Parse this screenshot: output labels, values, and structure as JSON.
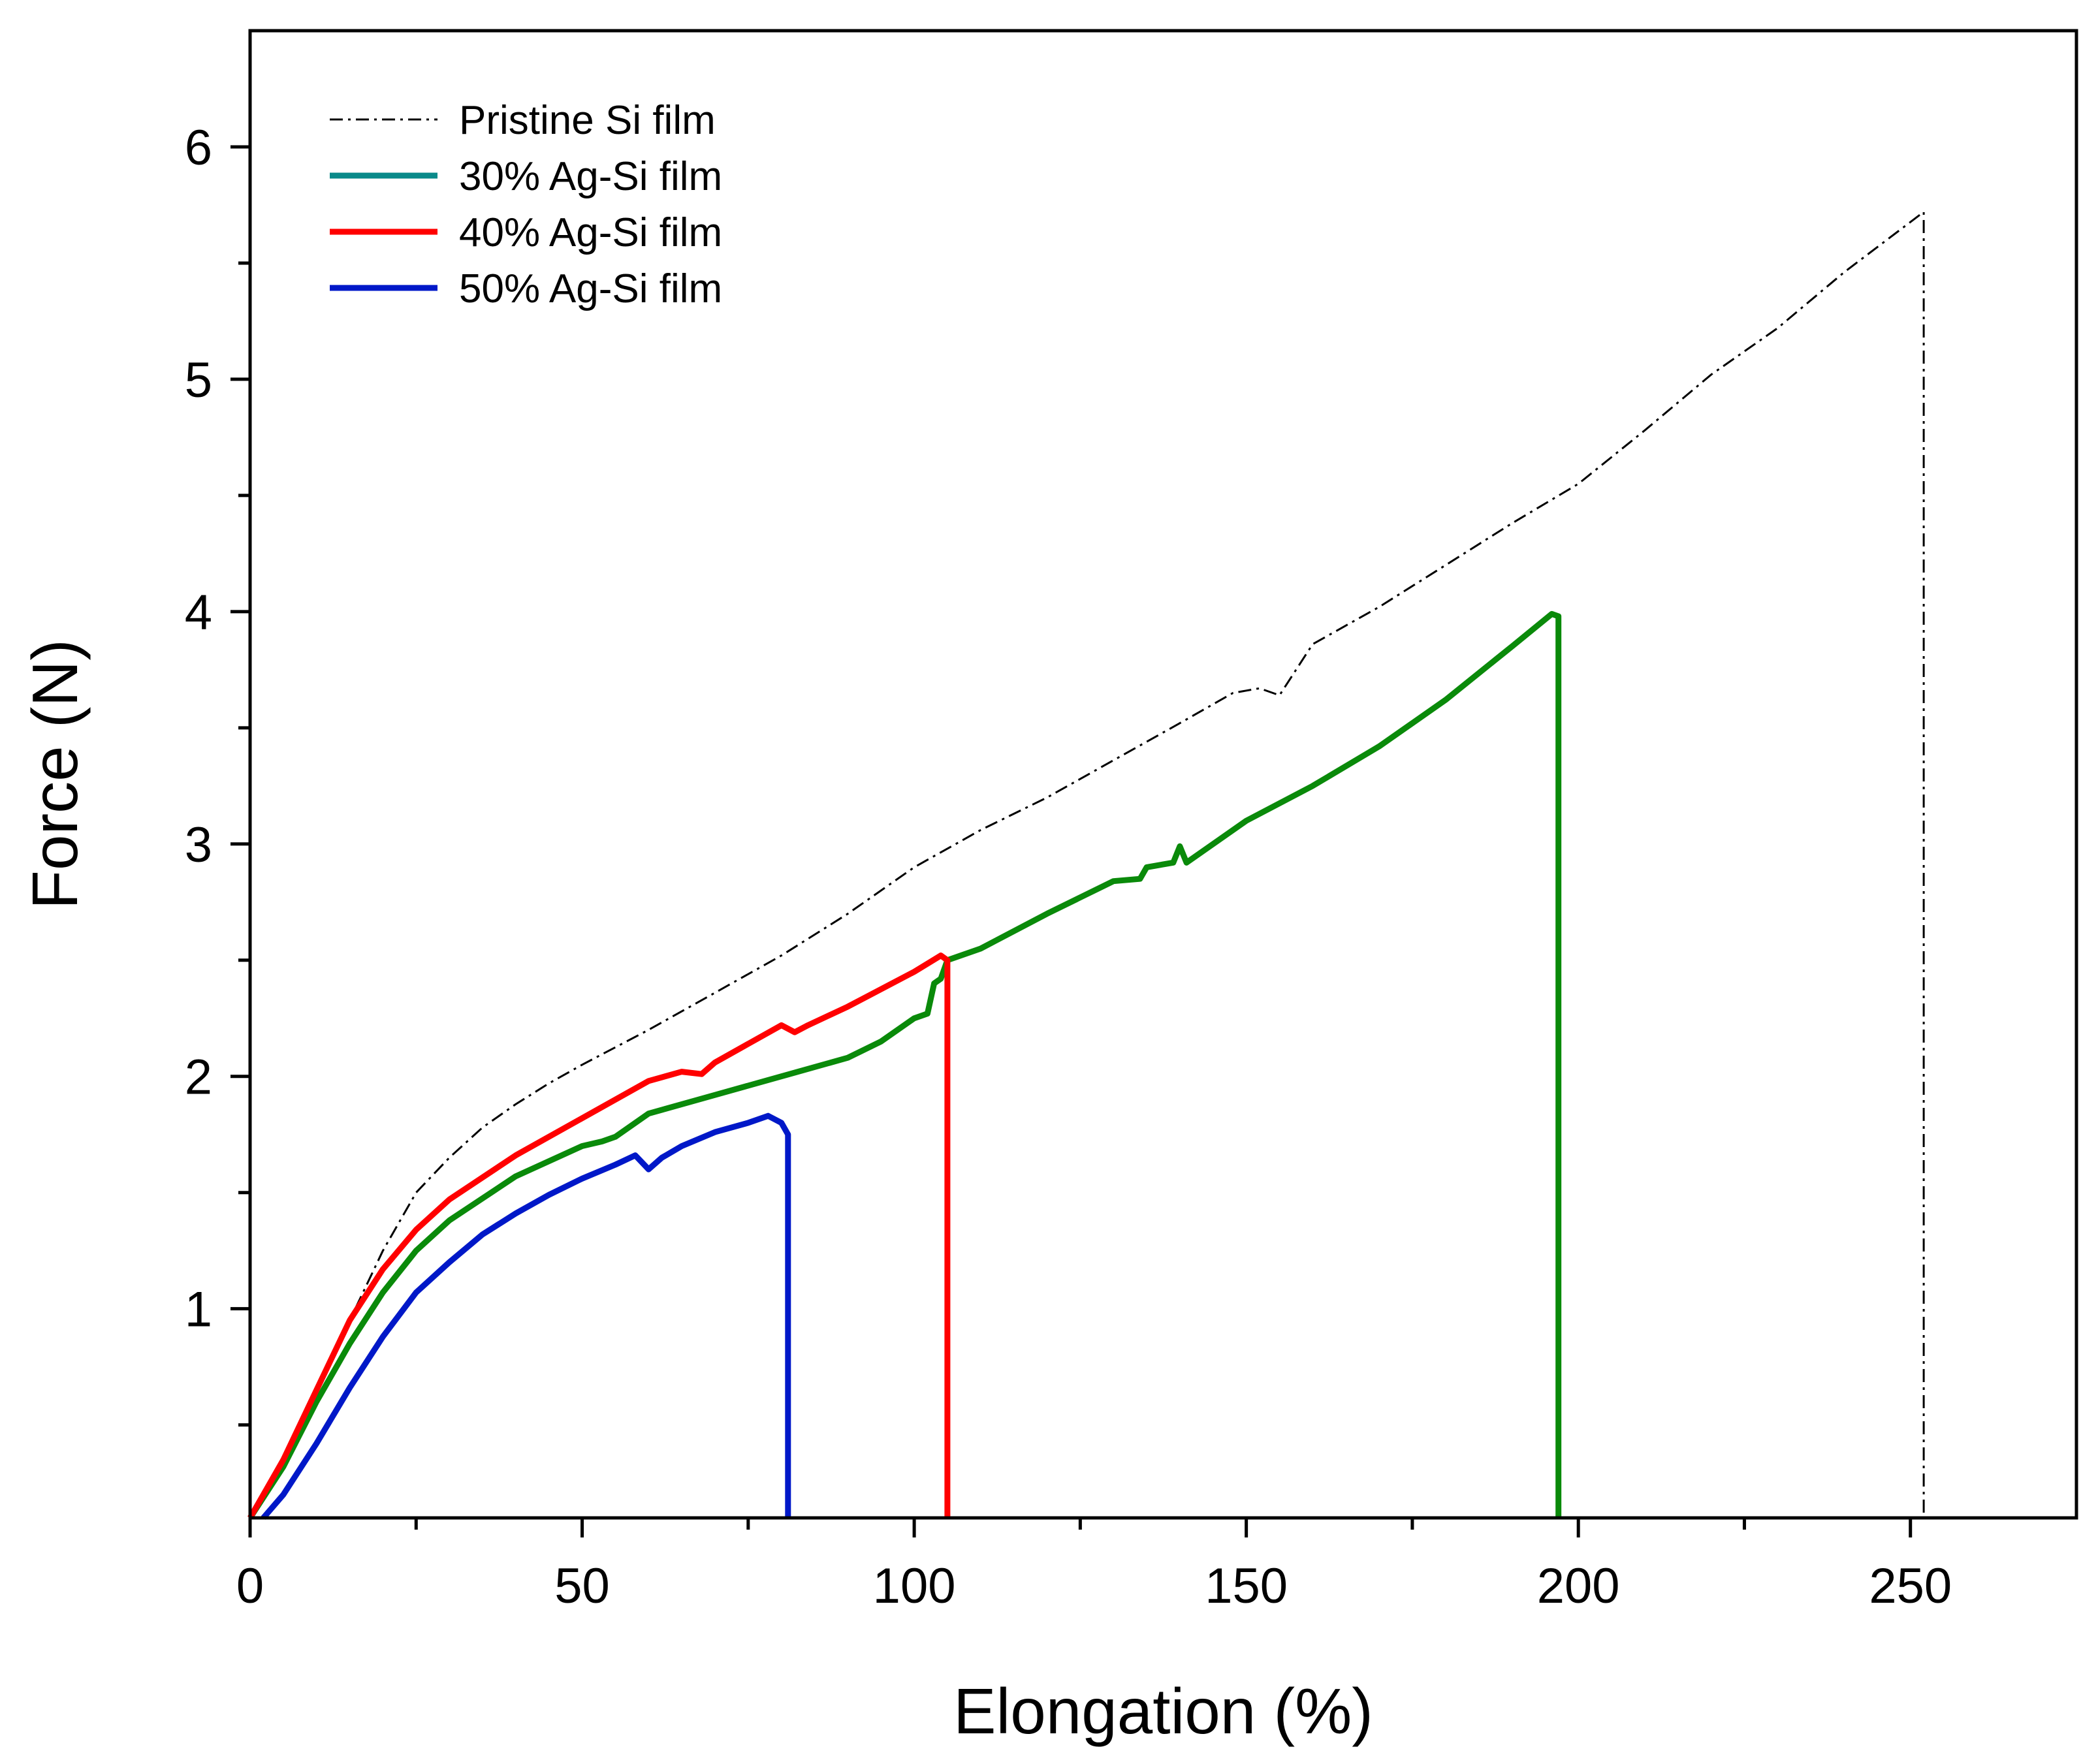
{
  "chart_data": {
    "type": "line",
    "title": "",
    "xlabel": "Elongation (%)",
    "ylabel": "Force (N)",
    "xlim": [
      0,
      275
    ],
    "ylim": [
      0.1,
      6.5
    ],
    "xticks": [
      0,
      50,
      100,
      150,
      200,
      250
    ],
    "xtick_labels": [
      "0",
      "50",
      "100",
      "150",
      "200",
      "250"
    ],
    "yticks": [
      1,
      2,
      3,
      4,
      5,
      6
    ],
    "ytick_labels": [
      "1",
      "2",
      "3",
      "4",
      "5",
      "6"
    ],
    "grid": false,
    "legend_position": "top-left",
    "series": [
      {
        "name": "Pristine Si film",
        "color": "#000000",
        "style": "dash-dot",
        "x": [
          0,
          5,
          10,
          15,
          20,
          25,
          30,
          35,
          40,
          45,
          50,
          60,
          70,
          80,
          90,
          100,
          110,
          120,
          130,
          140,
          148,
          152,
          155,
          160,
          170,
          180,
          190,
          200,
          210,
          220,
          230,
          240,
          252,
          252
        ],
        "y": [
          0.1,
          0.35,
          0.65,
          0.95,
          1.25,
          1.5,
          1.65,
          1.78,
          1.88,
          1.97,
          2.05,
          2.2,
          2.36,
          2.52,
          2.7,
          2.9,
          3.06,
          3.2,
          3.36,
          3.52,
          3.65,
          3.67,
          3.64,
          3.86,
          4.02,
          4.2,
          4.38,
          4.55,
          4.78,
          5.02,
          5.22,
          5.46,
          5.72,
          0.1
        ]
      },
      {
        "name": "30% Ag-Si film",
        "color": "#0a8a0a",
        "legend_color": "#0a8a8a",
        "style": "solid",
        "x": [
          0,
          5,
          10,
          15,
          20,
          25,
          30,
          40,
          50,
          53,
          55,
          60,
          70,
          80,
          90,
          95,
          100,
          102,
          103,
          104,
          105,
          110,
          120,
          130,
          134,
          135,
          139,
          140,
          141,
          150,
          160,
          170,
          180,
          190,
          196,
          197,
          197
        ],
        "y": [
          0.1,
          0.32,
          0.6,
          0.85,
          1.07,
          1.25,
          1.38,
          1.57,
          1.7,
          1.72,
          1.74,
          1.84,
          1.92,
          2.0,
          2.08,
          2.15,
          2.25,
          2.27,
          2.4,
          2.42,
          2.5,
          2.55,
          2.7,
          2.84,
          2.85,
          2.9,
          2.92,
          2.99,
          2.92,
          3.1,
          3.25,
          3.42,
          3.62,
          3.85,
          3.99,
          3.98,
          0.1
        ]
      },
      {
        "name": "40% Ag-Si film",
        "color": "#ff0000",
        "style": "solid",
        "x": [
          0,
          5,
          10,
          15,
          20,
          25,
          30,
          40,
          50,
          60,
          65,
          68,
          70,
          80,
          82,
          84,
          90,
          100,
          104,
          105,
          105
        ],
        "y": [
          0.1,
          0.35,
          0.65,
          0.95,
          1.17,
          1.34,
          1.47,
          1.66,
          1.82,
          1.98,
          2.02,
          2.01,
          2.06,
          2.22,
          2.19,
          2.22,
          2.3,
          2.45,
          2.52,
          2.5,
          0.1
        ]
      },
      {
        "name": "50% Ag-Si film",
        "color": "#0018c8",
        "style": "solid",
        "x": [
          2,
          5,
          10,
          15,
          20,
          25,
          30,
          35,
          40,
          45,
          50,
          55,
          58,
          60,
          62,
          65,
          70,
          75,
          78,
          80,
          81,
          81
        ],
        "y": [
          0.1,
          0.2,
          0.42,
          0.66,
          0.88,
          1.07,
          1.2,
          1.32,
          1.41,
          1.49,
          1.56,
          1.62,
          1.66,
          1.6,
          1.65,
          1.7,
          1.76,
          1.8,
          1.83,
          1.8,
          1.75,
          0.1
        ]
      }
    ]
  }
}
